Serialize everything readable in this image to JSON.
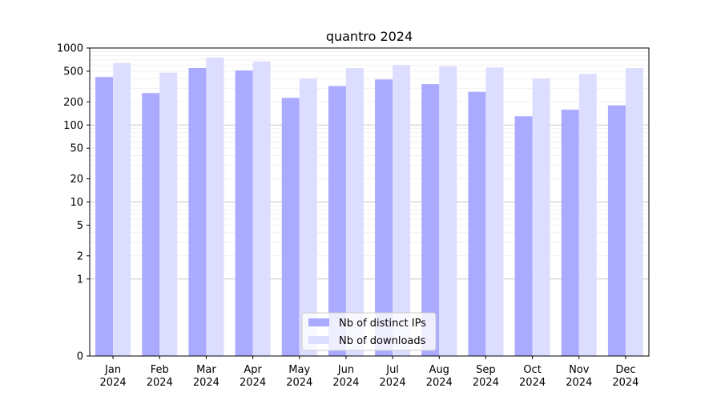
{
  "chart_data": {
    "type": "bar",
    "title": "quantro 2024",
    "xlabel": "",
    "ylabel": "",
    "yscale": "symlog",
    "ylim": [
      0,
      1000
    ],
    "categories": [
      [
        "Jan",
        "2024"
      ],
      [
        "Feb",
        "2024"
      ],
      [
        "Mar",
        "2024"
      ],
      [
        "Apr",
        "2024"
      ],
      [
        "May",
        "2024"
      ],
      [
        "Jun",
        "2024"
      ],
      [
        "Jul",
        "2024"
      ],
      [
        "Aug",
        "2024"
      ],
      [
        "Sep",
        "2024"
      ],
      [
        "Oct",
        "2024"
      ],
      [
        "Nov",
        "2024"
      ],
      [
        "Dec",
        "2024"
      ]
    ],
    "yticks": [
      "0",
      "1",
      "2",
      "5",
      "10",
      "20",
      "50",
      "100",
      "200",
      "500",
      "1000"
    ],
    "ytick_values": [
      0,
      1,
      2,
      5,
      10,
      20,
      50,
      100,
      200,
      500,
      1000
    ],
    "series": [
      {
        "name": "Nb of distinct IPs",
        "color": "#aaaaff",
        "values": [
          420,
          260,
          550,
          510,
          225,
          320,
          390,
          340,
          270,
          130,
          158,
          180
        ]
      },
      {
        "name": "Nb of downloads",
        "color": "#ddddff",
        "values": [
          640,
          480,
          750,
          670,
          400,
          550,
          600,
          580,
          560,
          400,
          460,
          550
        ]
      }
    ],
    "grid": true,
    "legend_position": "lower-center"
  }
}
